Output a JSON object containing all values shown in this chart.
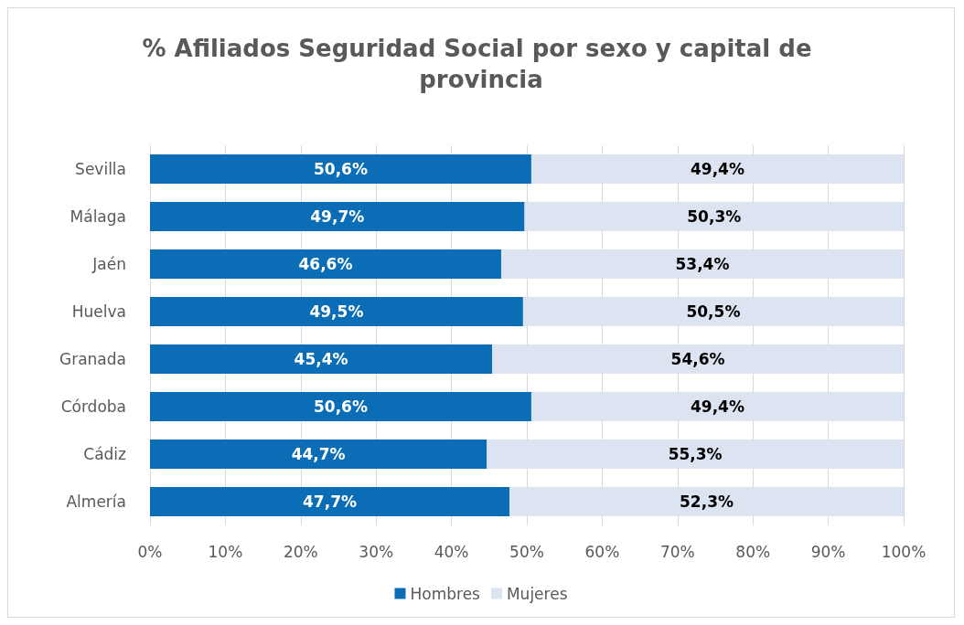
{
  "chart_data": {
    "type": "bar",
    "orientation": "horizontal",
    "stacked": true,
    "title": "% Afiliados Seguridad Social por sexo y capital de provincia",
    "categories": [
      "Sevilla",
      "Málaga",
      "Jaén",
      "Huelva",
      "Granada",
      "Córdoba",
      "Cádiz",
      "Almería"
    ],
    "series": [
      {
        "name": "Hombres",
        "color": "#0a6db5",
        "values": [
          50.6,
          49.7,
          46.6,
          49.5,
          45.4,
          50.6,
          44.7,
          47.7
        ],
        "value_labels": [
          "50,6%",
          "49,7%",
          "46,6%",
          "49,5%",
          "45,4%",
          "50,6%",
          "44,7%",
          "47,7%"
        ]
      },
      {
        "name": "Mujeres",
        "color": "#dce3f1",
        "values": [
          49.4,
          50.3,
          53.4,
          50.5,
          54.6,
          49.4,
          55.3,
          52.3
        ],
        "value_labels": [
          "49,4%",
          "50,3%",
          "53,4%",
          "50,5%",
          "54,6%",
          "49,4%",
          "55,3%",
          "52,3%"
        ]
      }
    ],
    "xlim": [
      0,
      100
    ],
    "xticks": [
      {
        "value": 0,
        "label": "0%"
      },
      {
        "value": 10,
        "label": "10%"
      },
      {
        "value": 20,
        "label": "20%"
      },
      {
        "value": 30,
        "label": "30%"
      },
      {
        "value": 40,
        "label": "40%"
      },
      {
        "value": 50,
        "label": "50%"
      },
      {
        "value": 60,
        "label": "60%"
      },
      {
        "value": 70,
        "label": "70%"
      },
      {
        "value": 80,
        "label": "80%"
      },
      {
        "value": 90,
        "label": "90%"
      },
      {
        "value": 100,
        "label": "100%"
      }
    ],
    "grid": "x",
    "legend": "bottom"
  }
}
